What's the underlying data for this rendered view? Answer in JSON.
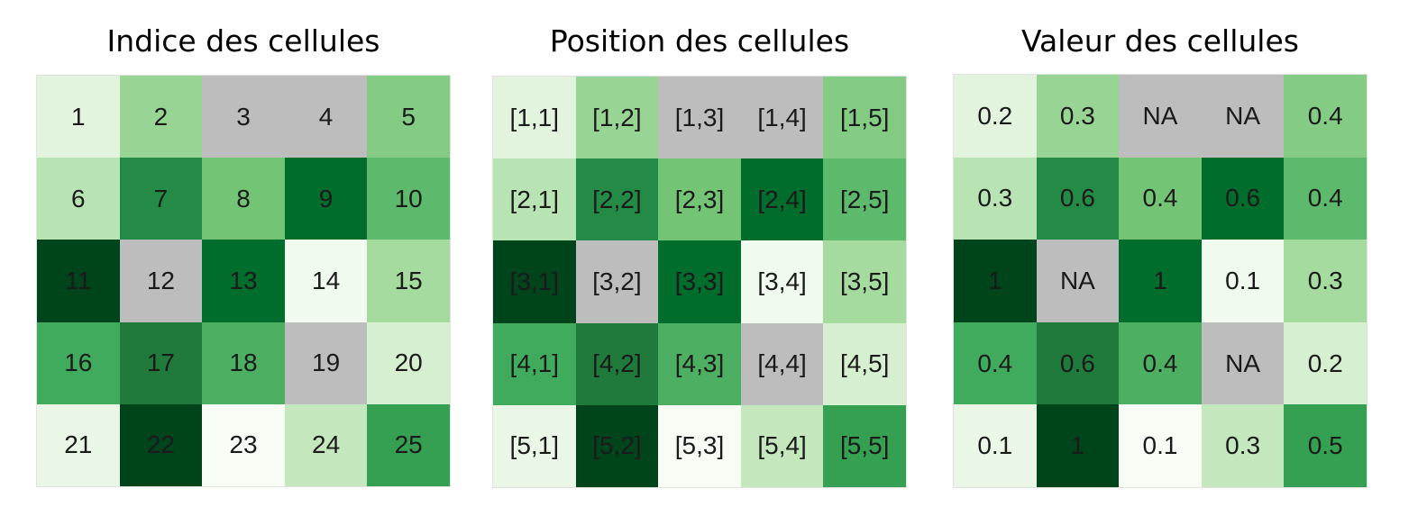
{
  "palette": {
    "na": "#bdbdbd",
    "shades": {
      "0.1": "#f7fcf5",
      "0.2": "#e5f5e0",
      "0.3": "#c7e9c0",
      "0.4": "#74c476",
      "0.5": "#41ab5d",
      "0.6": "#238b45",
      "1": "#00441b"
    }
  },
  "cell_colors": [
    "#e3f4de",
    "#98d494",
    "#bdbdbd",
    "#bdbdbd",
    "#84cb83",
    "#b8e3b2",
    "#238b45",
    "#74c476",
    "#006d2c",
    "#5db96b",
    "#00441b",
    "#bdbdbd",
    "#006d2c",
    "#f1faee",
    "#a6dba0",
    "#41ab5d",
    "#1f7a3c",
    "#4daf62",
    "#bdbdbd",
    "#d6efd0",
    "#eaf6e6",
    "#00441b",
    "#f7fcf5",
    "#c4e7bd",
    "#36a052"
  ],
  "panels": [
    {
      "title": "Indice des cellules",
      "cells": [
        "1",
        "2",
        "3",
        "4",
        "5",
        "6",
        "7",
        "8",
        "9",
        "10",
        "11",
        "12",
        "13",
        "14",
        "15",
        "16",
        "17",
        "18",
        "19",
        "20",
        "21",
        "22",
        "23",
        "24",
        "25"
      ]
    },
    {
      "title": "Position des cellules",
      "cells": [
        "[1,1]",
        "[1,2]",
        "[1,3]",
        "[1,4]",
        "[1,5]",
        "[2,1]",
        "[2,2]",
        "[2,3]",
        "[2,4]",
        "[2,5]",
        "[3,1]",
        "[3,2]",
        "[3,3]",
        "[3,4]",
        "[3,5]",
        "[4,1]",
        "[4,2]",
        "[4,3]",
        "[4,4]",
        "[4,5]",
        "[5,1]",
        "[5,2]",
        "[5,3]",
        "[5,4]",
        "[5,5]"
      ]
    },
    {
      "title": "Valeur des cellules",
      "cells": [
        "0.2",
        "0.3",
        "NA",
        "NA",
        "0.4",
        "0.3",
        "0.6",
        "0.4",
        "0.6",
        "0.4",
        "1",
        "NA",
        "1",
        "0.1",
        "0.3",
        "0.4",
        "0.6",
        "0.4",
        "NA",
        "0.2",
        "0.1",
        "1",
        "0.1",
        "0.3",
        "0.5"
      ]
    }
  ]
}
